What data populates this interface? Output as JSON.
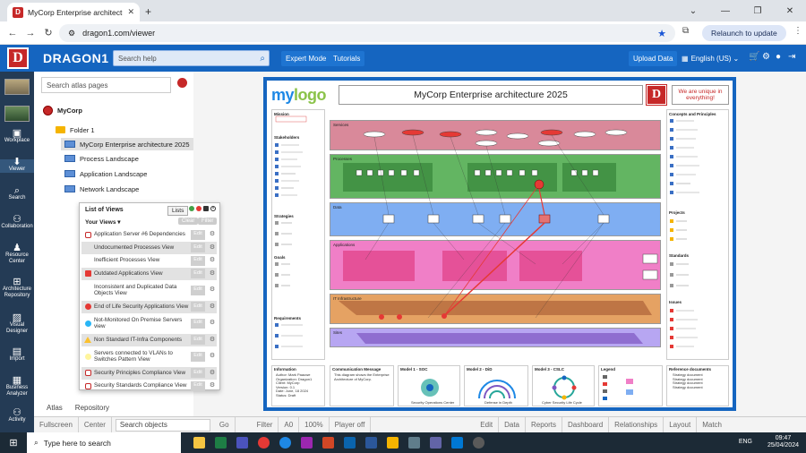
{
  "browser": {
    "tab_title": "MyCorp Enterprise architectu",
    "url": "dragon1.com/viewer",
    "relaunch_label": "Relaunch to update"
  },
  "header": {
    "brand": "DRAGON1",
    "search_placeholder": "Search help",
    "expert_mode": "Expert Mode",
    "tutorials": "Tutorials",
    "upload_data": "Upload Data",
    "language": "English (US)"
  },
  "rail": {
    "items": [
      "Workplace",
      "Viewer",
      "Search",
      "Collaboration",
      "Resource Center",
      "Architecture Repository",
      "Visual Designer",
      "Import",
      "Business Analyzer",
      "Activity"
    ]
  },
  "tree": {
    "search_placeholder": "Search atlas pages",
    "root": "MyCorp",
    "folder": "Folder 1",
    "pages": [
      "MyCorp Enterprise architecture 2025",
      "Process Landscape",
      "Application Landscape",
      "Network Landscape"
    ],
    "tabs": [
      "Atlas",
      "Repository"
    ]
  },
  "list_of_views": {
    "title": "List of Views",
    "lists_button": "Lists",
    "your_views": "Your Views",
    "clear": "Clear",
    "filter": "Filter",
    "edit_label": "Edit",
    "views": [
      {
        "label": "Application Server #6 Dependencies",
        "marker": "#c62828"
      },
      {
        "label": "Undocumented Processes View",
        "marker": ""
      },
      {
        "label": "Inefficient Processes View",
        "marker": ""
      },
      {
        "label": "Outdated Applications View",
        "marker": "#e53935"
      },
      {
        "label": "Inconsistent and Duplicated Data Objects View",
        "marker": ""
      },
      {
        "label": "End of Life Security Applications View",
        "marker": "#e53935"
      },
      {
        "label": "Not-Monitored On Premise Servers view",
        "marker": "#29b6f6"
      },
      {
        "label": "Non Standard IT-Infra Components",
        "marker": "#fbc02d"
      },
      {
        "label": "Servers connected to VLANs to Switches Pattern View",
        "marker": "#fff59d"
      },
      {
        "label": "Security Principles Compliance View",
        "marker": "#c62828"
      },
      {
        "label": "Security Standards Compliance View",
        "marker": "#c62828"
      }
    ]
  },
  "board": {
    "logo_my": "my",
    "logo_logo": "logo",
    "title": "MyCorp Enterprise architecture 2025",
    "unique": "We are unique in everything!",
    "left_sections": [
      "Mission",
      "Stakeholders",
      "Strategies",
      "Goals",
      "Requirements"
    ],
    "right_sections": [
      "Concepts and Principles",
      "Projects",
      "Standards",
      "Issues"
    ],
    "layers": [
      "Services",
      "Processes",
      "Data",
      "Applications",
      "IT Infrastructure",
      "Sites"
    ],
    "footer": [
      {
        "title": "Information",
        "text": "Author: Mark Paauwe\nOrganization: Dragon1\nClient: MyCorp\nVersion: 0.1\nDate: June, 18 2024\nStatus: Draft"
      },
      {
        "title": "Communication Message",
        "text": "This diagram shows the Enterprise Architecture of MyCorp."
      },
      {
        "title": "Model 1 - SOC",
        "text": "Security Operations Center"
      },
      {
        "title": "Model 2 - DiD",
        "text": "Defense in Depth"
      },
      {
        "title": "Model 3 - CSLC",
        "text": "Cyber Security Life Cycle"
      },
      {
        "title": "Legend",
        "text": ""
      },
      {
        "title": "Reference documents",
        "text": "Strategy document\nStrategy document\nStrategy document\nStrategy document"
      }
    ]
  },
  "toolbar": {
    "left": [
      "Fullscreen",
      "Center"
    ],
    "search_placeholder": "Search objects",
    "mid": [
      "Go",
      "Filter",
      "A0",
      "100%",
      "Player off"
    ],
    "right": [
      "Edit",
      "Data",
      "Reports",
      "Dashboard",
      "Relationships",
      "Layout",
      "Match"
    ]
  },
  "taskbar": {
    "search_placeholder": "Type here to search",
    "lang": "ENG",
    "time": "09:47",
    "date": "25/04/2024"
  }
}
